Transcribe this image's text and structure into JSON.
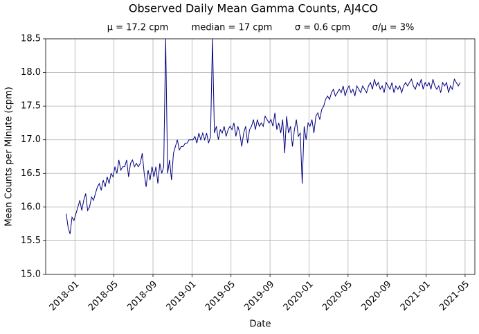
{
  "chart_data": {
    "type": "line",
    "title": "Observed Daily Mean Gamma Counts, AJ4CO",
    "subtitle": [
      "μ = 17.2 cpm",
      "median = 17 cpm",
      "σ = 0.6 cpm",
      "σ/μ = 3%"
    ],
    "x_label": "Date",
    "y_label": "Mean Counts per Minute (cpm)",
    "x": [
      "2017-12",
      "2018-01",
      "2018-02",
      "2018-03",
      "2018-04",
      "2018-05",
      "2018-06",
      "2018-07",
      "2018-08",
      "2018-09",
      "2018-10",
      "2018-11",
      "2018-12",
      "2019-01",
      "2019-02",
      "2019-03",
      "2019-04",
      "2019-05",
      "2019-06",
      "2019-07",
      "2019-08",
      "2019-09",
      "2019-10",
      "2019-11",
      "2019-12",
      "2020-01",
      "2020-02",
      "2020-03",
      "2020-04",
      "2020-05",
      "2020-06",
      "2020-07",
      "2020-08",
      "2020-09",
      "2020-10",
      "2020-11",
      "2020-12",
      "2021-01",
      "2021-02",
      "2021-03",
      "2021-04"
    ],
    "series": [
      {
        "color": "#000080",
        "values": [
          [
            15.9,
            15.7,
            15.6,
            15.85,
            15.8
          ],
          [
            15.9,
            16.0,
            16.1,
            15.95,
            16.1
          ],
          [
            16.2,
            15.95,
            16.0,
            16.15,
            16.1
          ],
          [
            16.2,
            16.3,
            16.35,
            16.25,
            16.4
          ],
          [
            16.3,
            16.45,
            16.35,
            16.5,
            16.45
          ],
          [
            16.6,
            16.5,
            16.7,
            16.55,
            16.6
          ],
          [
            16.6,
            16.7,
            16.45,
            16.65,
            16.7
          ],
          [
            16.6,
            16.65,
            16.6,
            16.65,
            16.8
          ],
          [
            16.5,
            16.3,
            16.55,
            16.4,
            16.6
          ],
          [
            16.45,
            16.6,
            16.35,
            16.65,
            16.5
          ],
          [
            16.6,
            18.5,
            16.5,
            16.7,
            16.4
          ],
          [
            16.8,
            16.9,
            17.0,
            16.85,
            16.9
          ],
          [
            16.9,
            16.95,
            16.95,
            17.0,
            17.0
          ],
          [
            17.0,
            17.05,
            16.95,
            17.1,
            17.0
          ],
          [
            17.1,
            17.0,
            17.1,
            16.95,
            17.05
          ],
          [
            18.5,
            17.1,
            17.2,
            17.0,
            17.15
          ],
          [
            17.1,
            17.2,
            17.05,
            17.15,
            17.2
          ],
          [
            17.15,
            17.25,
            17.05,
            17.2,
            17.1
          ],
          [
            16.9,
            17.1,
            17.2,
            16.95,
            17.15
          ],
          [
            17.2,
            17.3,
            17.15,
            17.3,
            17.2
          ],
          [
            17.25,
            17.2,
            17.35,
            17.3,
            17.25
          ],
          [
            17.3,
            17.2,
            17.4,
            17.15,
            17.25
          ],
          [
            17.1,
            17.3,
            16.8,
            17.35,
            17.1
          ],
          [
            17.2,
            16.9,
            17.15,
            17.3,
            17.05
          ],
          [
            17.1,
            16.35,
            17.2,
            17.0,
            17.25
          ],
          [
            17.2,
            17.3,
            17.1,
            17.35,
            17.4
          ],
          [
            17.3,
            17.45,
            17.5,
            17.6,
            17.65
          ],
          [
            17.6,
            17.7,
            17.75,
            17.65,
            17.7
          ],
          [
            17.75,
            17.7,
            17.8,
            17.65,
            17.75
          ],
          [
            17.8,
            17.7,
            17.75,
            17.65,
            17.8
          ],
          [
            17.75,
            17.7,
            17.8,
            17.75,
            17.7
          ],
          [
            17.8,
            17.85,
            17.75,
            17.9,
            17.8
          ],
          [
            17.85,
            17.75,
            17.8,
            17.7,
            17.85
          ],
          [
            17.8,
            17.75,
            17.85,
            17.7,
            17.8
          ],
          [
            17.75,
            17.8,
            17.7,
            17.8,
            17.85
          ],
          [
            17.8,
            17.85,
            17.9,
            17.8,
            17.75
          ],
          [
            17.85,
            17.8,
            17.9,
            17.75,
            17.85
          ],
          [
            17.8,
            17.85,
            17.75,
            17.9,
            17.8
          ],
          [
            17.75,
            17.8,
            17.7,
            17.85,
            17.8
          ],
          [
            17.85,
            17.7,
            17.8,
            17.75,
            17.9
          ],
          [
            17.85,
            17.8,
            17.85
          ]
        ]
      }
    ],
    "xlim": [
      "2017-10",
      "2021-06"
    ],
    "xticks": [
      "2018-01",
      "2018-05",
      "2018-09",
      "2019-01",
      "2019-05",
      "2019-09",
      "2020-01",
      "2020-05",
      "2020-09",
      "2021-01",
      "2021-05"
    ],
    "ylim": [
      15,
      18.5
    ],
    "yticks": [
      {
        "value": 15,
        "label": "15.0"
      },
      15.5,
      {
        "value": 16,
        "label": "16.0"
      },
      16.5,
      {
        "value": 17,
        "label": "17.0"
      },
      17.5,
      {
        "value": 18,
        "label": "18.0"
      },
      18.5
    ],
    "grid": true
  }
}
